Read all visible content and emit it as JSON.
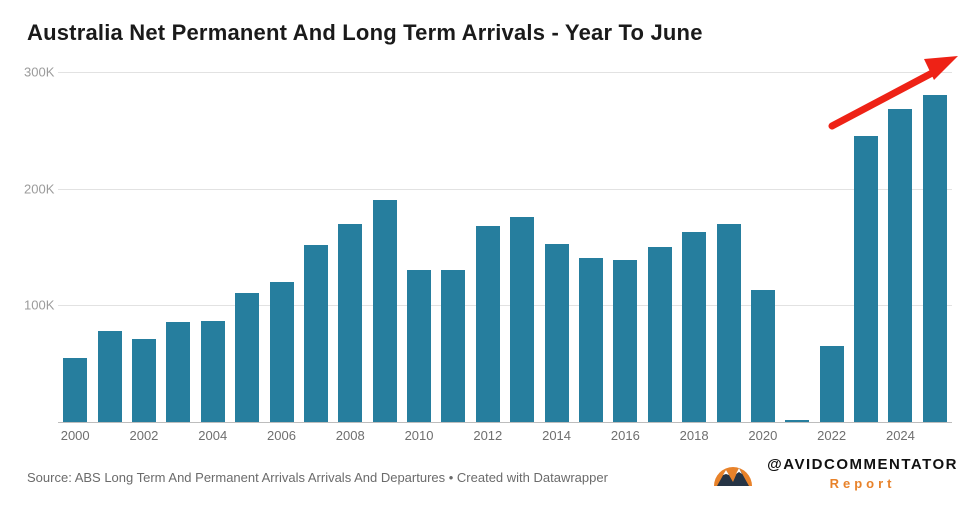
{
  "title": "Australia Net Permanent And Long Term Arrivals - Year To June",
  "chart_data": {
    "type": "bar",
    "title": "Australia Net Permanent And Long Term Arrivals - Year To June",
    "categories": [
      "2000",
      "2001",
      "2002",
      "2003",
      "2004",
      "2005",
      "2006",
      "2007",
      "2008",
      "2009",
      "2010",
      "2011",
      "2012",
      "2013",
      "2014",
      "2015",
      "2016",
      "2017",
      "2018",
      "2019",
      "2020",
      "2021",
      "2022",
      "2023",
      "2024",
      "2025"
    ],
    "values": [
      55000,
      78000,
      71000,
      86000,
      87000,
      111000,
      120000,
      152000,
      170000,
      190000,
      130000,
      130000,
      168000,
      176000,
      153000,
      141000,
      139000,
      150000,
      163000,
      170000,
      113000,
      2000,
      65000,
      245000,
      268000,
      280000
    ],
    "xlabel": "",
    "ylabel": "",
    "ylim": [
      0,
      300000
    ],
    "yticks": [
      100000,
      200000,
      300000
    ],
    "ytick_labels": [
      "100K",
      "200K",
      "300K"
    ],
    "xtick_labels": [
      "2000",
      "2002",
      "2004",
      "2006",
      "2008",
      "2010",
      "2012",
      "2014",
      "2016",
      "2018",
      "2020",
      "2022",
      "2024"
    ],
    "grid": "horizontal",
    "legend_position": "none",
    "bar_color": "#267e9e"
  },
  "annotations": {
    "trend_arrow": "red-upward-arrow",
    "arrow_color": "#ee2216"
  },
  "footer": {
    "source": "Source: ABS Long Term And Permanent Arrivals Arrivals And Departures • Created with Datawrapper"
  },
  "branding": {
    "logo": "mountain-sun-logo",
    "handle": "@AVIDCOMMENTATOR",
    "report_label": "Report",
    "accent_color": "#e8822a"
  }
}
